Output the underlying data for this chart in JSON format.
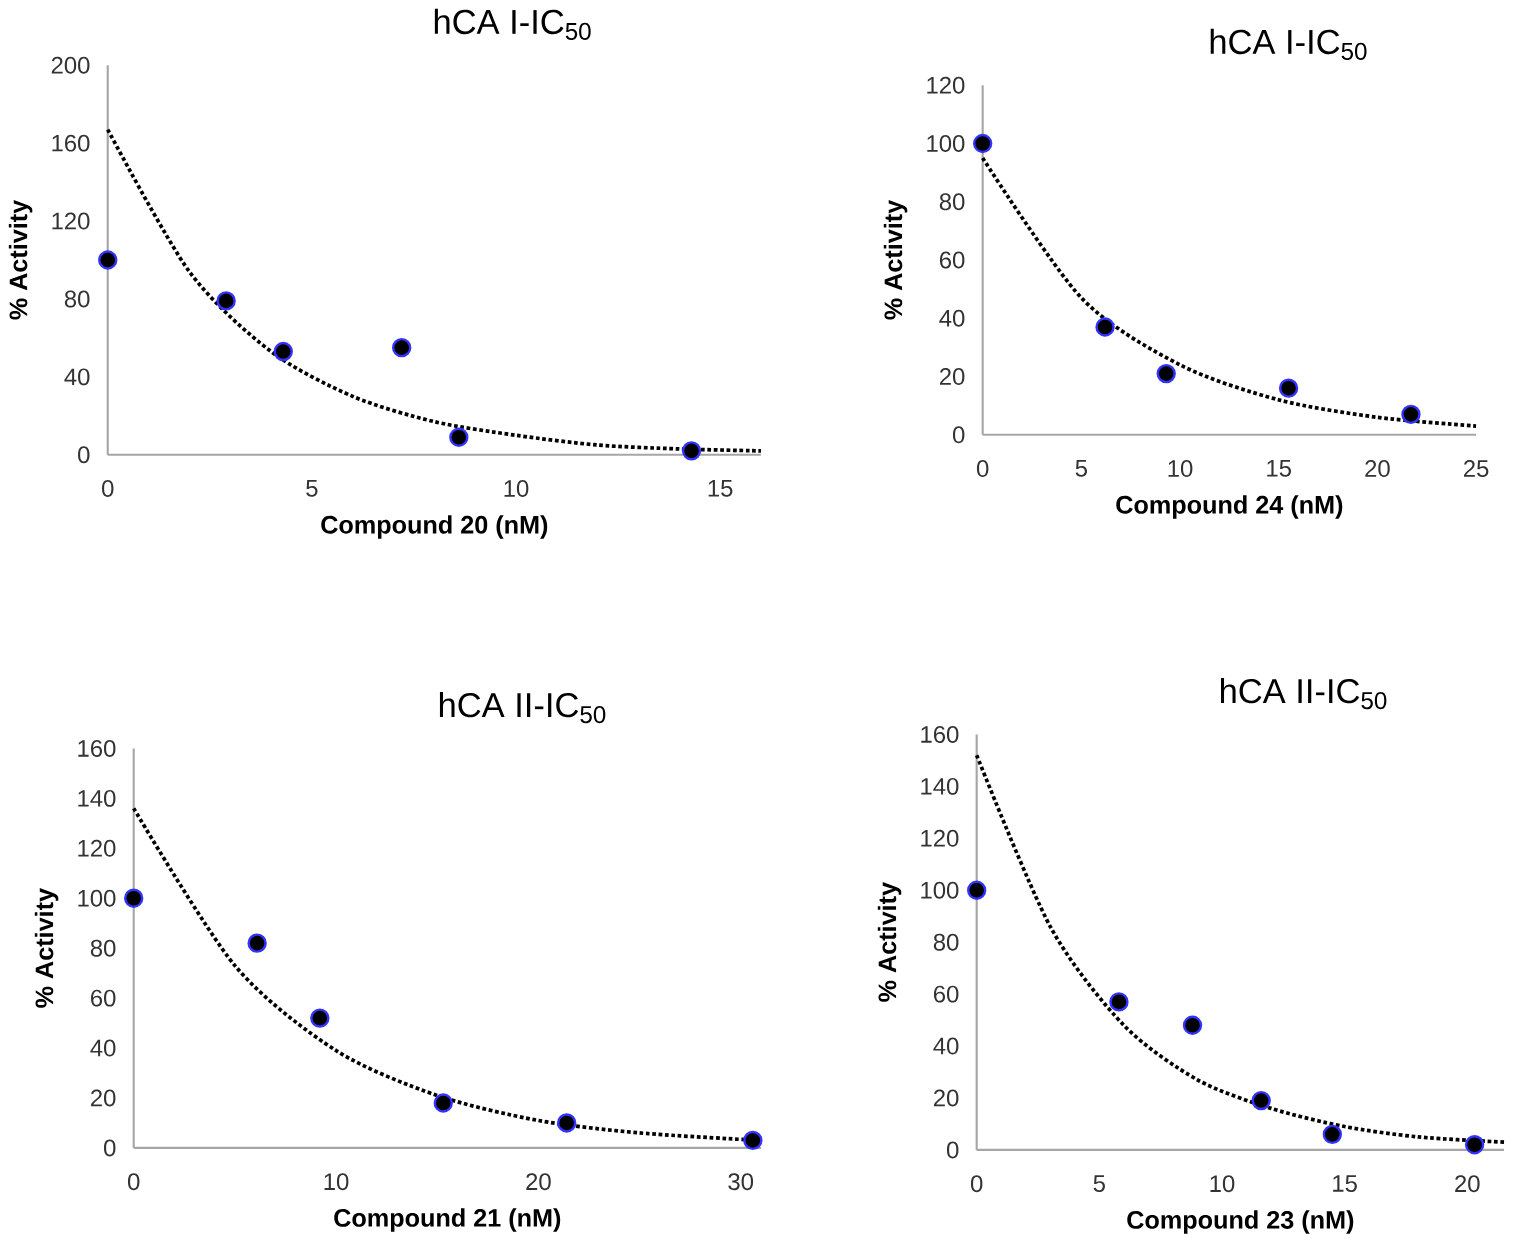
{
  "chart_data": [
    {
      "type": "scatter",
      "title": "hCA I-IC$_{50}$",
      "xlabel": "Compound 20 (nM)",
      "ylabel": "% Activity",
      "xlim": [
        0,
        16
      ],
      "ylim": [
        0,
        200
      ],
      "xticks": [
        0,
        5,
        10,
        15
      ],
      "yticks": [
        0,
        40,
        80,
        120,
        160,
        200
      ],
      "series": [
        {
          "marker": "circle",
          "color": "#000000",
          "x": [
            0,
            2.9,
            4.3,
            7.2,
            8.6,
            14.3
          ],
          "values": [
            100,
            79,
            53,
            55,
            9,
            2
          ]
        },
        {
          "type": "line",
          "marker": "none",
          "line_style": "dotted",
          "color": "#000000",
          "x": [
            0,
            2,
            4,
            6,
            8,
            10,
            12,
            14,
            16
          ],
          "values": [
            167,
            94,
            53,
            30,
            17,
            10,
            5,
            3,
            2
          ]
        }
      ]
    },
    {
      "type": "scatter",
      "title": "hCA I-IC$_{50}$",
      "xlabel": "Compound 24 (nM)",
      "ylabel": "% Activity",
      "xlim": [
        0,
        25
      ],
      "ylim": [
        0,
        120
      ],
      "xticks": [
        0,
        5,
        10,
        15,
        20,
        25
      ],
      "yticks": [
        0,
        20,
        40,
        60,
        80,
        100,
        120
      ],
      "series": [
        {
          "marker": "circle",
          "color": "#000000",
          "x": [
            0,
            6.2,
            9.3,
            15.5,
            21.7
          ],
          "values": [
            100,
            37,
            21,
            16,
            7
          ]
        },
        {
          "type": "line",
          "marker": "none",
          "line_style": "dotted",
          "color": "#000000",
          "x": [
            0,
            5,
            10,
            15,
            20,
            25
          ],
          "values": [
            95,
            47,
            24,
            12,
            6,
            3
          ]
        }
      ]
    },
    {
      "type": "scatter",
      "title": "hCA II-IC$_{50}$",
      "xlabel": "Compound 21 (nM)",
      "ylabel": "% Activity",
      "xlim": [
        0,
        31
      ],
      "ylim": [
        0,
        160
      ],
      "xticks": [
        0,
        10,
        20,
        30
      ],
      "yticks": [
        0,
        20,
        40,
        60,
        80,
        100,
        120,
        140,
        160
      ],
      "series": [
        {
          "marker": "circle",
          "color": "#000000",
          "x": [
            0,
            6.1,
            9.2,
            15.3,
            21.4,
            30.6
          ],
          "values": [
            100,
            82,
            52,
            18,
            10,
            3
          ]
        },
        {
          "type": "line",
          "marker": "none",
          "line_style": "dotted",
          "color": "#000000",
          "x": [
            0,
            5,
            10,
            15,
            20,
            25,
            31
          ],
          "values": [
            136,
            73,
            39,
            21,
            11,
            6,
            3
          ]
        }
      ]
    },
    {
      "type": "scatter",
      "title": "hCA II-IC$_{50}$",
      "xlabel": "Compound 23 (nM)",
      "ylabel": "% Activity",
      "xlim": [
        0,
        21.5
      ],
      "ylim": [
        0,
        160
      ],
      "xticks": [
        0,
        5,
        10,
        15,
        20
      ],
      "yticks": [
        0,
        20,
        40,
        60,
        80,
        100,
        120,
        140,
        160
      ],
      "series": [
        {
          "marker": "circle",
          "color": "#000000",
          "x": [
            0,
            5.8,
            8.8,
            11.6,
            14.5,
            20.3
          ],
          "values": [
            100,
            57,
            48,
            19,
            6,
            2
          ]
        },
        {
          "type": "line",
          "marker": "none",
          "line_style": "dotted",
          "color": "#000000",
          "x": [
            0,
            3,
            6,
            9,
            12,
            15,
            18,
            21.5
          ],
          "values": [
            152,
            86,
            48,
            27,
            16,
            9,
            5,
            3
          ]
        }
      ]
    }
  ]
}
